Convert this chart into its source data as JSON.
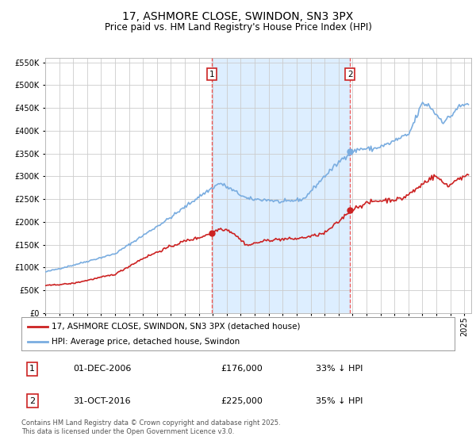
{
  "title": "17, ASHMORE CLOSE, SWINDON, SN3 3PX",
  "subtitle": "Price paid vs. HM Land Registry's House Price Index (HPI)",
  "ylim": [
    0,
    560000
  ],
  "yticks": [
    0,
    50000,
    100000,
    150000,
    200000,
    250000,
    300000,
    350000,
    400000,
    450000,
    500000,
    550000
  ],
  "xlim_start": 1995.0,
  "xlim_end": 2025.5,
  "marker1_date": 2006.917,
  "marker2_date": 2016.833,
  "marker1_price": 176000,
  "marker2_price": 225000,
  "shade_color": "#ddeeff",
  "line1_color": "#cc2222",
  "line2_color": "#7aade0",
  "marker_color": "#cc2222",
  "vline_color": "#ee5555",
  "grid_color": "#cccccc",
  "bg_color": "#ffffff",
  "legend_label1": "17, ASHMORE CLOSE, SWINDON, SN3 3PX (detached house)",
  "legend_label2": "HPI: Average price, detached house, Swindon",
  "annotation1": "1",
  "annotation2": "2",
  "info1_date": "01-DEC-2006",
  "info1_price": "£176,000",
  "info1_hpi": "33% ↓ HPI",
  "info2_date": "31-OCT-2016",
  "info2_price": "£225,000",
  "info2_hpi": "35% ↓ HPI",
  "footer": "Contains HM Land Registry data © Crown copyright and database right 2025.\nThis data is licensed under the Open Government Licence v3.0.",
  "title_fontsize": 10,
  "subtitle_fontsize": 8.5,
  "tick_fontsize": 7,
  "legend_fontsize": 7.5,
  "footer_fontsize": 6
}
